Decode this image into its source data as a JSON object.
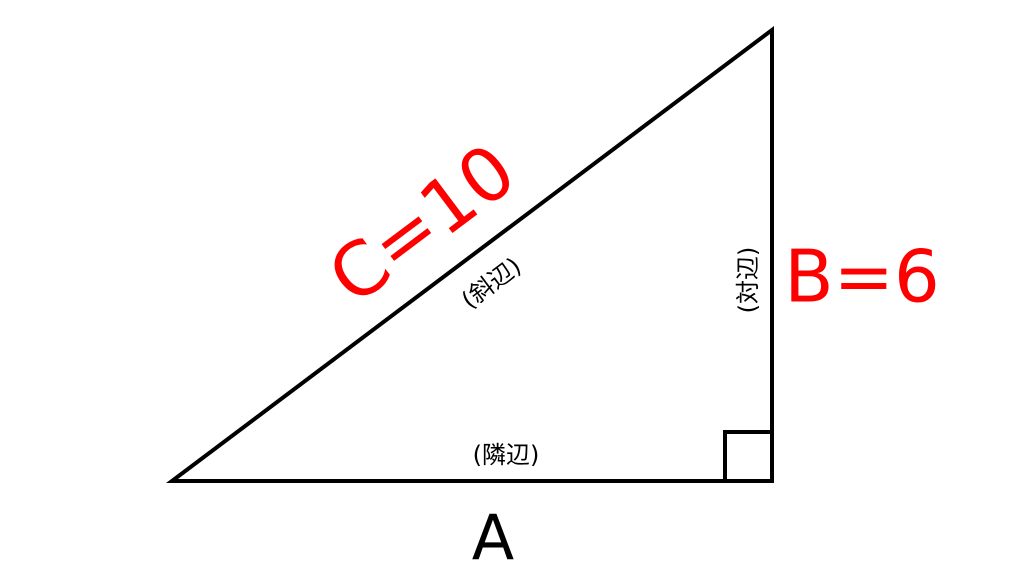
{
  "diagram": {
    "hypotenuse": {
      "value_label": "C=10",
      "name_label": "(斜辺)"
    },
    "opposite": {
      "value_label": "B=6",
      "name_label": "(対辺)"
    },
    "adjacent": {
      "value_label": "A",
      "name_label": "(隣辺)"
    },
    "colors": {
      "lines": "#000000",
      "highlight": "#ff0000",
      "label": "#000000"
    }
  }
}
